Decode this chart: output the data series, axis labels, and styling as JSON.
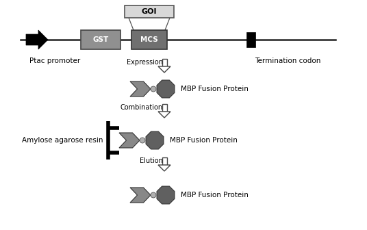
{
  "bg_color": "#ffffff",
  "line_color": "#222222",
  "label_ptac": "Ptac promoter",
  "label_term": "Termination codon",
  "label_gst": "GST",
  "label_mcs": "MCS",
  "label_goi": "GOI",
  "label_expression": "Expression",
  "label_combination": "Combination",
  "label_elution": "Elution",
  "label_mbp1": "MBP Fusion Protein",
  "label_mbp2": "MBP Fusion Protein",
  "label_mbp3": "MBP Fusion Protein",
  "label_amylose": "Amylose agarose resin",
  "color_gst": "#909090",
  "color_mcs": "#707070",
  "color_goi_bg": "#d8d8d8",
  "color_arrow_fill": "#888888",
  "color_oct_fill": "#606060",
  "color_dot": "#b0b0b0",
  "figw": 5.36,
  "figh": 3.36,
  "dpi": 100
}
